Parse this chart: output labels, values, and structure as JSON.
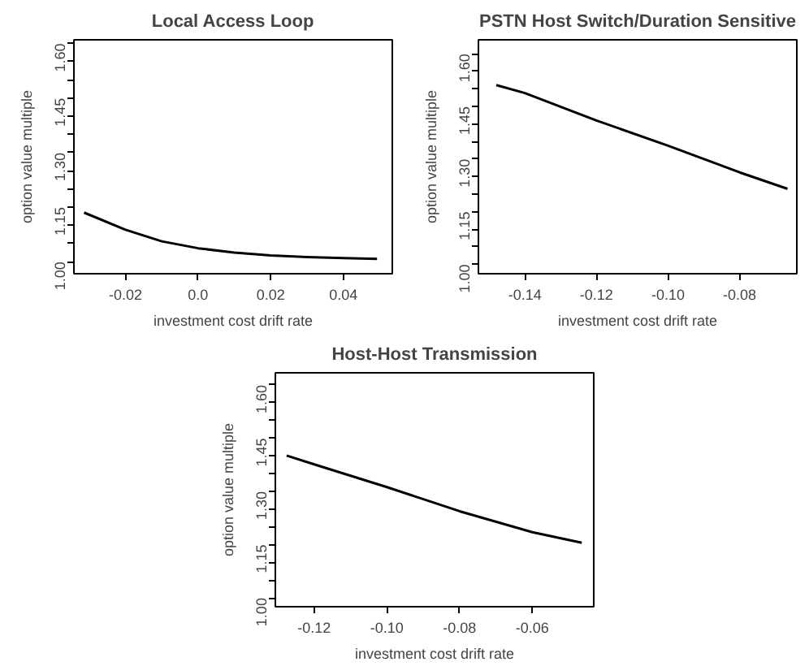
{
  "chart_data": [
    {
      "type": "line",
      "title": "Local Access Loop",
      "xlabel": "investment cost drift rate",
      "ylabel": "option value multiple",
      "xlim": [
        -0.0342,
        0.0535
      ],
      "ylim": [
        0.967,
        1.61
      ],
      "xticks": [
        {
          "value": -0.02,
          "label": "-0.02"
        },
        {
          "value": 0.0,
          "label": "0.0"
        },
        {
          "value": 0.02,
          "label": "0.02"
        },
        {
          "value": 0.04,
          "label": "0.04"
        }
      ],
      "yticks": [
        {
          "value": 1.0,
          "label": "1.00"
        },
        {
          "value": 1.05,
          "label": null
        },
        {
          "value": 1.1,
          "label": null
        },
        {
          "value": 1.15,
          "label": "1.15"
        },
        {
          "value": 1.2,
          "label": null
        },
        {
          "value": 1.25,
          "label": null
        },
        {
          "value": 1.3,
          "label": "1.30"
        },
        {
          "value": 1.35,
          "label": null
        },
        {
          "value": 1.4,
          "label": null
        },
        {
          "value": 1.45,
          "label": "1.45"
        },
        {
          "value": 1.5,
          "label": null
        },
        {
          "value": 1.55,
          "label": null
        },
        {
          "value": 1.6,
          "label": "1.60"
        }
      ],
      "series": [
        {
          "color": "#000000",
          "x": [
            -0.0314,
            -0.02,
            -0.01,
            0.0,
            0.01,
            0.02,
            0.03,
            0.04,
            0.0493
          ],
          "values": [
            1.135,
            1.088,
            1.056,
            1.037,
            1.025,
            1.017,
            1.013,
            1.01,
            1.008
          ]
        }
      ]
    },
    {
      "type": "line",
      "title": "PSTN Host Switch/Duration Sensitive",
      "xlabel": "investment cost drift rate",
      "ylabel": "option value multiple",
      "xlim": [
        -0.153,
        -0.064
      ],
      "ylim": [
        0.973,
        1.64
      ],
      "xticks": [
        -0.14,
        -0.12,
        {
          "value": -0.1,
          "label": "-0.10"
        },
        -0.08
      ],
      "yticks": [
        {
          "value": 1.0,
          "label": "1.00"
        },
        {
          "value": 1.05,
          "label": null
        },
        {
          "value": 1.1,
          "label": null
        },
        {
          "value": 1.15,
          "label": "1.15"
        },
        {
          "value": 1.2,
          "label": null
        },
        {
          "value": 1.25,
          "label": null
        },
        {
          "value": 1.3,
          "label": "1.30"
        },
        {
          "value": 1.35,
          "label": null
        },
        {
          "value": 1.4,
          "label": null
        },
        {
          "value": 1.45,
          "label": "1.45"
        },
        {
          "value": 1.5,
          "label": null
        },
        {
          "value": 1.55,
          "label": null
        },
        {
          "value": 1.6,
          "label": "1.60"
        }
      ],
      "series": [
        {
          "color": "#000000",
          "x": [
            -0.148,
            -0.14,
            -0.12,
            -0.1,
            -0.08,
            -0.0666
          ],
          "values": [
            1.511,
            1.488,
            1.41,
            1.338,
            1.262,
            1.215
          ]
        }
      ]
    },
    {
      "type": "line",
      "title": "Host-Host Transmission",
      "xlabel": "investment cost drift rate",
      "ylabel": "option value multiple",
      "xlim": [
        -0.1307,
        -0.0431
      ],
      "ylim": [
        0.975,
        1.634
      ],
      "xticks": [
        -0.12,
        {
          "value": -0.1,
          "label": "-0.10"
        },
        -0.08,
        -0.06
      ],
      "yticks": [
        {
          "value": 1.0,
          "label": "1.00"
        },
        {
          "value": 1.05,
          "label": null
        },
        {
          "value": 1.1,
          "label": null
        },
        {
          "value": 1.15,
          "label": "1.15"
        },
        {
          "value": 1.2,
          "label": null
        },
        {
          "value": 1.25,
          "label": null
        },
        {
          "value": 1.3,
          "label": "1.30"
        },
        {
          "value": 1.35,
          "label": null
        },
        {
          "value": 1.4,
          "label": null
        },
        {
          "value": 1.45,
          "label": "1.45"
        },
        {
          "value": 1.5,
          "label": null
        },
        {
          "value": 1.55,
          "label": null
        },
        {
          "value": 1.6,
          "label": "1.60"
        }
      ],
      "series": [
        {
          "color": "#000000",
          "x": [
            -0.1276,
            -0.12,
            -0.1,
            -0.08,
            -0.06,
            -0.0464
          ],
          "values": [
            1.401,
            1.376,
            1.312,
            1.244,
            1.185,
            1.155
          ]
        }
      ]
    }
  ]
}
